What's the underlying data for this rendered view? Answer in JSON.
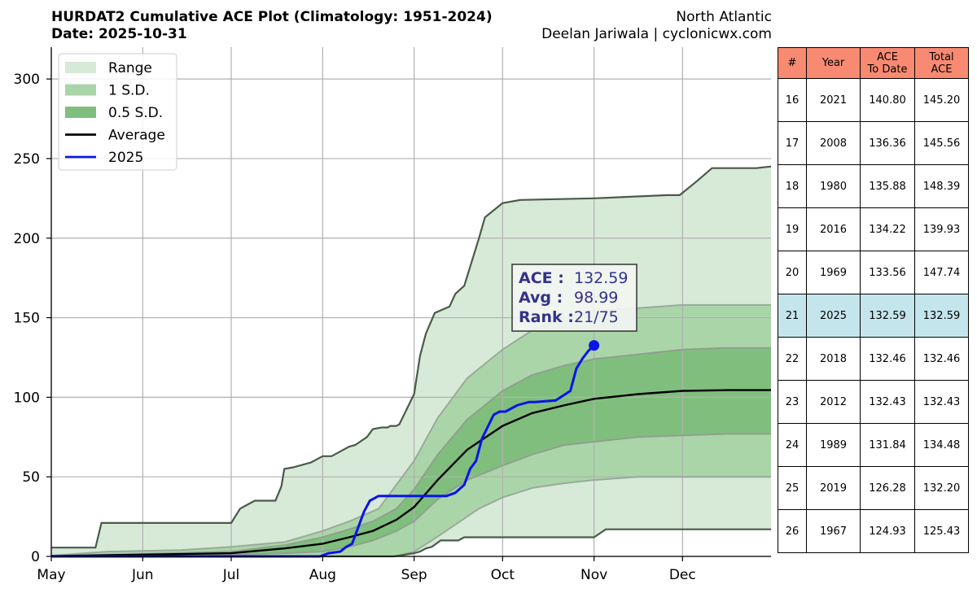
{
  "header": {
    "title": "HURDAT2 Cumulative ACE Plot (Climatology: 1951-2024)",
    "date": "Date: 2025-10-31",
    "basin": "North Atlantic",
    "credit": "Deelan Jariwala | cyclonicwx.com"
  },
  "chart_data": {
    "type": "area",
    "x_unit": "day of year (May 1 = 121)",
    "xlim": [
      121,
      365
    ],
    "ylim": [
      0,
      320
    ],
    "yticks": [
      0,
      50,
      100,
      150,
      200,
      250,
      300
    ],
    "xticks": [
      {
        "label": "May",
        "day": 121
      },
      {
        "label": "Jun",
        "day": 152
      },
      {
        "label": "Jul",
        "day": 182
      },
      {
        "label": "Aug",
        "day": 213
      },
      {
        "label": "Sep",
        "day": 244
      },
      {
        "label": "Oct",
        "day": 274
      },
      {
        "label": "Nov",
        "day": 305
      },
      {
        "label": "Dec",
        "day": 335
      }
    ],
    "grid": true,
    "legend_position": "upper-left",
    "legend": [
      {
        "label": "Range",
        "color": "#d7ead8",
        "kind": "patch"
      },
      {
        "label": "1 S.D.",
        "color": "#aad5a8",
        "kind": "patch"
      },
      {
        "label": "0.5 S.D.",
        "color": "#80be7e",
        "kind": "patch"
      },
      {
        "label": "Average",
        "color": "#000000",
        "kind": "line"
      },
      {
        "label": "2025",
        "color": "#0a14e6",
        "kind": "line"
      }
    ],
    "series": [
      {
        "name": "Range (max)",
        "x": [
          121,
          136,
          138,
          182,
          185,
          187,
          190,
          197,
          199,
          200,
          203,
          209,
          213,
          216,
          222,
          224,
          228,
          230,
          233,
          235,
          236,
          238,
          239,
          244,
          246,
          248,
          251,
          256,
          258,
          261,
          266,
          268,
          270,
          274,
          280,
          305,
          330,
          334,
          336,
          340,
          345,
          360,
          365
        ],
        "values": [
          5.5,
          5.5,
          21,
          21,
          30,
          32,
          35,
          35,
          44,
          55,
          56,
          59,
          63,
          63,
          69,
          70,
          75,
          80,
          81,
          81,
          82,
          82,
          83,
          102,
          126,
          140,
          153,
          157,
          165,
          170,
          200,
          213,
          216,
          222,
          224,
          225,
          227,
          227,
          230,
          236,
          244,
          244,
          245
        ]
      },
      {
        "name": "Range (min)",
        "x": [
          121,
          237,
          239,
          244,
          246,
          248,
          250,
          253,
          259,
          261,
          305,
          309,
          365
        ],
        "values": [
          0,
          0,
          0.5,
          2,
          3,
          5,
          6,
          10,
          10,
          12,
          12,
          17,
          17
        ]
      },
      {
        "name": "1 S.D. upper",
        "x": [
          121,
          140,
          165,
          182,
          200,
          213,
          222,
          232,
          238,
          244,
          252,
          262,
          274,
          284,
          295,
          305,
          320,
          335,
          350,
          365
        ],
        "values": [
          0.5,
          3,
          4,
          6,
          9,
          16,
          22,
          30,
          45,
          60,
          87,
          112,
          130,
          142,
          150,
          154,
          156,
          158,
          158,
          158
        ]
      },
      {
        "name": "1 S.D. lower",
        "x": [
          121,
          230,
          238,
          244,
          250,
          258,
          266,
          274,
          284,
          295,
          305,
          320,
          335,
          365
        ],
        "values": [
          0,
          0,
          0,
          3,
          10,
          20,
          30,
          37,
          43,
          46,
          48,
          50,
          50,
          50
        ]
      },
      {
        "name": "0.5 S.D. upper",
        "x": [
          121,
          150,
          182,
          200,
          213,
          222,
          230,
          238,
          244,
          252,
          262,
          274,
          284,
          295,
          305,
          320,
          335,
          350,
          365
        ],
        "values": [
          0.3,
          1.5,
          3,
          7,
          12,
          17,
          22,
          30,
          42,
          64,
          86,
          104,
          114,
          120,
          124,
          127,
          130,
          131,
          131
        ]
      },
      {
        "name": "0.5 S.D. lower",
        "x": [
          121,
          150,
          182,
          200,
          213,
          222,
          230,
          238,
          244,
          252,
          262,
          274,
          284,
          295,
          305,
          320,
          335,
          350,
          365
        ],
        "values": [
          0,
          0.5,
          1,
          2,
          3,
          6,
          10,
          16,
          22,
          36,
          48,
          57,
          64,
          70,
          72,
          75,
          76,
          77,
          77
        ]
      },
      {
        "name": "Average",
        "x": [
          121,
          150,
          182,
          200,
          213,
          222,
          230,
          238,
          244,
          252,
          262,
          274,
          284,
          295,
          305,
          320,
          335,
          350,
          365
        ],
        "values": [
          0.2,
          1,
          2,
          5,
          8,
          12,
          16,
          23,
          31,
          48,
          67,
          82,
          90,
          95,
          99,
          102,
          104,
          104.5,
          104.5
        ]
      },
      {
        "name": "2025",
        "x": [
          121,
          212,
          215,
          219,
          221,
          223,
          225,
          227,
          229,
          232,
          240,
          255,
          258,
          261,
          263,
          265,
          267,
          271,
          273,
          275,
          279,
          283,
          285,
          292,
          297,
          299,
          301,
          303,
          305
        ],
        "values": [
          0,
          0,
          2,
          3,
          6,
          8,
          18,
          28,
          35,
          38,
          38,
          38,
          40,
          45,
          55,
          60,
          74,
          89,
          91,
          91,
          95,
          97,
          97,
          98,
          104,
          118,
          124,
          129,
          132.59
        ]
      }
    ],
    "annotation": {
      "labels": [
        "ACE :",
        "Avg :",
        "Rank :"
      ],
      "values": [
        "132.59",
        "98.99",
        "21/75"
      ],
      "point": {
        "x": 305,
        "y": 132.59
      }
    }
  },
  "table": {
    "headers": [
      "#",
      "Year",
      "ACE\nTo Date",
      "Total\nACE"
    ],
    "rows": [
      [
        "16",
        "2021",
        "140.80",
        "145.20"
      ],
      [
        "17",
        "2008",
        "136.36",
        "145.56"
      ],
      [
        "18",
        "1980",
        "135.88",
        "148.39"
      ],
      [
        "19",
        "2016",
        "134.22",
        "139.93"
      ],
      [
        "20",
        "1969",
        "133.56",
        "147.74"
      ],
      [
        "21",
        "2025",
        "132.59",
        "132.59"
      ],
      [
        "22",
        "2018",
        "132.46",
        "132.46"
      ],
      [
        "23",
        "2012",
        "132.43",
        "132.43"
      ],
      [
        "24",
        "1989",
        "131.84",
        "134.48"
      ],
      [
        "25",
        "2019",
        "126.28",
        "132.20"
      ],
      [
        "26",
        "1967",
        "124.93",
        "125.43"
      ]
    ],
    "highlight_year": "2025"
  }
}
